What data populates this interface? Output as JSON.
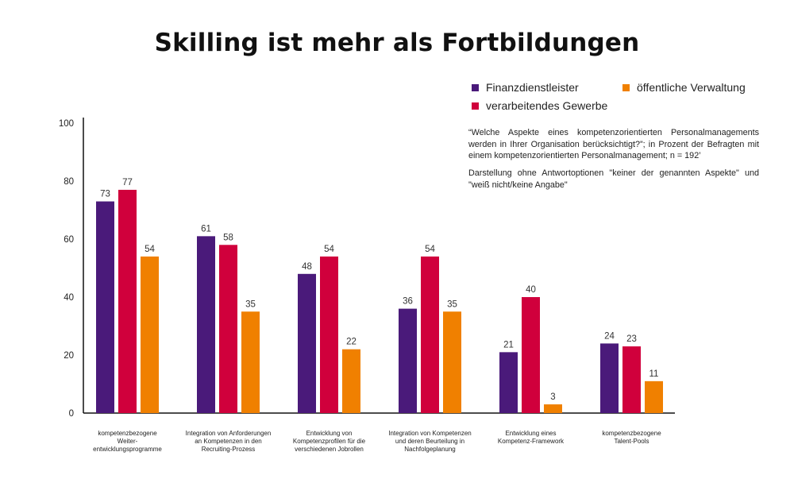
{
  "title": "Skilling ist mehr als Fortbildungen",
  "legend": [
    {
      "label": "Finanzdienstleister",
      "color": "#4a1a7a"
    },
    {
      "label": "öffentliche Verwaltung",
      "color": "#f08000"
    },
    {
      "label": "verarbeitendes Gewerbe",
      "color": "#d0003c"
    }
  ],
  "notes": {
    "question": "“Welche Aspekte eines kompetenzorientierten Personalmanagements werden in Ihrer Organisation berücksichtigt?”; in Prozent der Befragten mit einem kompetenzorientierten Personalmanagement; n = 192’",
    "exclusion": "Darstellung ohne Antwortoptionen \"keiner der genannten Aspekte\" und \"weiß nicht/keine Angabe\""
  },
  "chart_data": {
    "type": "bar",
    "title": "Skilling ist mehr als Fortbildungen",
    "xlabel": "",
    "ylabel": "",
    "ylim": [
      0,
      100
    ],
    "yticks": [
      0,
      20,
      40,
      60,
      80,
      100
    ],
    "grid": false,
    "legend_position": "top-right",
    "categories": [
      [
        "kompetenzbezogene",
        "Weiter-",
        "entwicklungsprogramme"
      ],
      [
        "Integration von Anforderungen",
        "an Kompetenzen in den",
        "Recruiting-Prozess"
      ],
      [
        "Entwicklung von",
        "Kompetenzprofilen für die",
        "verschiedenen Jobrollen"
      ],
      [
        "Integration von Kompetenzen",
        "und deren Beurteilung in",
        "Nachfolgeplanung"
      ],
      [
        "Entwicklung eines",
        "Kompetenz-Framework"
      ],
      [
        "kompetenzbezogene",
        "Talent-Pools"
      ]
    ],
    "series": [
      {
        "name": "Finanzdienstleister",
        "color": "#4a1a7a",
        "values": [
          73,
          61,
          48,
          36,
          21,
          24
        ]
      },
      {
        "name": "verarbeitendes Gewerbe",
        "color": "#d0003c",
        "values": [
          77,
          58,
          54,
          54,
          40,
          23
        ]
      },
      {
        "name": "öffentliche Verwaltung",
        "color": "#f08000",
        "values": [
          54,
          35,
          22,
          35,
          3,
          11
        ]
      }
    ]
  }
}
